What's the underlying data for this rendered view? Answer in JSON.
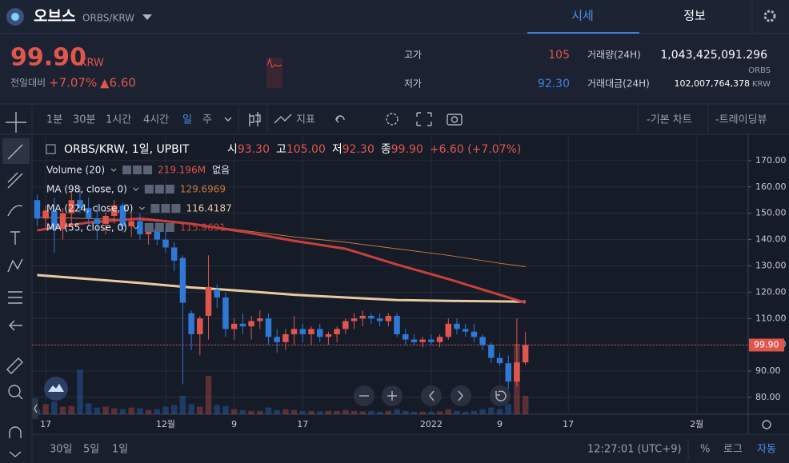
{
  "header": {
    "name": "오브스",
    "pair": "ORBS/KRW",
    "tabs": [
      "시세",
      "정보"
    ]
  },
  "price": {
    "current": "99.90",
    "unit": "KRW",
    "change_label": "전일대비",
    "change_pct": "+7.07%",
    "change_abs": "▲6.60"
  },
  "stats": {
    "high_label": "고가",
    "high": "105",
    "low_label": "저가",
    "low": "92.30",
    "volume_label": "거래량(24H)",
    "volume": "1,043,425,091.296",
    "volume_unit": "ORBS",
    "amount_label": "거래대금(24H)",
    "amount": "102,007,764,378",
    "amount_unit": "KRW"
  },
  "toolbar": {
    "intervals": [
      "1분",
      "30분",
      "1시간",
      "4시간",
      "일",
      "주"
    ],
    "indicator": "지표",
    "basic_chart": "-기본 차트",
    "tradingview": "-트레이딩뷰"
  },
  "legend": {
    "symbol": "ORBS/KRW, 1일, UPBIT",
    "ohlc": [
      {
        "label": "시",
        "value": "93.30"
      },
      {
        "label": "고",
        "value": "105.00"
      },
      {
        "label": "저",
        "value": "92.30"
      },
      {
        "label": "종",
        "value": "99.90"
      }
    ],
    "change": "+6.60 (+7.07%)"
  },
  "chart_data": {
    "type": "candlestick",
    "x": [
      0,
      1,
      2,
      3,
      4,
      5,
      6,
      7,
      8,
      9,
      10,
      11,
      12,
      13,
      14,
      15,
      16,
      17,
      18,
      19,
      20,
      21,
      22,
      23,
      24,
      25,
      26,
      27,
      28,
      29,
      30,
      31,
      32,
      33,
      34,
      35,
      36,
      37,
      38,
      39,
      40,
      41,
      42,
      43,
      44,
      45,
      46,
      47,
      48,
      49,
      50,
      51,
      52,
      53,
      54,
      55,
      56,
      57
    ],
    "open": [
      155,
      148,
      151,
      144,
      150,
      155,
      152,
      148,
      146,
      149,
      153,
      145,
      147,
      142,
      144,
      140,
      137,
      133,
      112,
      104,
      111,
      121,
      118,
      106,
      108,
      107,
      109,
      110,
      103,
      101,
      104,
      106,
      104,
      106,
      103,
      104,
      106,
      109,
      110,
      111,
      110,
      109,
      111,
      104,
      102,
      101,
      102,
      101,
      103,
      108,
      106,
      105,
      103,
      100,
      95,
      93,
      86,
      93.3
    ],
    "high": [
      157,
      153,
      156,
      152,
      158,
      160,
      156,
      153,
      151,
      155,
      154,
      150,
      150,
      146,
      147,
      144,
      139,
      134,
      113,
      111,
      134,
      123,
      120,
      110,
      112,
      111,
      113,
      112,
      106,
      106,
      111,
      108,
      107,
      108,
      105,
      107,
      110,
      112,
      113,
      112,
      112,
      112,
      112,
      106,
      104,
      103,
      104,
      104,
      110,
      110,
      108,
      108,
      104,
      101,
      97,
      96,
      110,
      105
    ],
    "low": [
      145,
      144,
      135,
      140,
      146,
      150,
      145,
      140,
      142,
      146,
      143,
      141,
      140,
      138,
      138,
      135,
      128,
      85,
      98,
      96,
      102,
      114,
      103,
      102,
      104,
      102,
      106,
      100,
      97,
      98,
      100,
      101,
      100,
      101,
      100,
      101,
      104,
      106,
      107,
      108,
      107,
      107,
      103,
      100,
      100,
      99,
      100,
      99,
      102,
      104,
      103,
      101,
      98,
      93,
      92,
      83,
      84,
      92.3
    ],
    "close": [
      148,
      151,
      144,
      150,
      155,
      152,
      148,
      146,
      149,
      153,
      145,
      147,
      142,
      144,
      140,
      137,
      132,
      116,
      104,
      110,
      122,
      118,
      106,
      108,
      107,
      109,
      110,
      103,
      101,
      104,
      106,
      104,
      106,
      103,
      104,
      106,
      109,
      110,
      111,
      110,
      109,
      111,
      104,
      102,
      101,
      102,
      101,
      103,
      108,
      106,
      105,
      103,
      100,
      95,
      93,
      86,
      93.3,
      99.9
    ],
    "volume": {
      "name": "Volume (20)",
      "last_label": "219.196M",
      "extra": "없음",
      "values": [
        60,
        120,
        150,
        90,
        100,
        535,
        130,
        80,
        90,
        70,
        60,
        80,
        70,
        50,
        60,
        90,
        110,
        219,
        120,
        90,
        457,
        110,
        100,
        60,
        50,
        40,
        40,
        80,
        50,
        60,
        50,
        40,
        40,
        35,
        40,
        40,
        50,
        40,
        35,
        40,
        30,
        40,
        60,
        40,
        30,
        30,
        30,
        35,
        60,
        40,
        30,
        40,
        60,
        80,
        60,
        120,
        840,
        219
      ]
    },
    "series": [
      {
        "name": "MA (98, close, 0)",
        "last_label": "129.6969",
        "color": "#c9783a",
        "width": 1,
        "x": [
          0,
          6,
          12,
          18,
          24,
          30,
          36,
          42,
          48,
          54,
          57
        ],
        "values": [
          148.5,
          148,
          147.5,
          146,
          143.5,
          141,
          139,
          136.5,
          134,
          131,
          129.7
        ]
      },
      {
        "name": "MA (224, close, 0)",
        "last_label": "116.4187",
        "color": "#e8c9a0",
        "width": 3,
        "x": [
          0,
          6,
          12,
          18,
          24,
          30,
          36,
          42,
          48,
          54,
          57
        ],
        "values": [
          126.5,
          125,
          123.5,
          121.8,
          120.5,
          119,
          118,
          117,
          116.7,
          116.5,
          116.4
        ]
      },
      {
        "name": "MA (55, close, 0)",
        "last_label": "115.9691",
        "color": "#c8403b",
        "width": 3,
        "x": [
          0,
          6,
          12,
          18,
          24,
          30,
          36,
          42,
          48,
          54,
          57
        ],
        "values": [
          143.5,
          146.5,
          148,
          146,
          143,
          139.5,
          136.5,
          130.5,
          125,
          119,
          116
        ]
      }
    ],
    "up_color": "#e0564d",
    "down_color": "#2f78d6",
    "xlim": [
      -0.6,
      83
    ],
    "ylim": [
      73.6,
      180
    ],
    "xticks": [
      {
        "value": 1,
        "label": "17"
      },
      {
        "value": 15,
        "label": "12월"
      },
      {
        "value": 23,
        "label": "9"
      },
      {
        "value": 31,
        "label": "17"
      },
      {
        "value": 46,
        "label": "2022"
      },
      {
        "value": 54,
        "label": "9"
      },
      {
        "value": 62,
        "label": "17"
      },
      {
        "value": 77,
        "label": "2월"
      }
    ],
    "yticks": [
      {
        "value": 80,
        "label": "80.00"
      },
      {
        "value": 90,
        "label": "90.00"
      },
      {
        "value": 100,
        "label": "100.00"
      },
      {
        "value": 110,
        "label": "110.00"
      },
      {
        "value": 120,
        "label": "120.00"
      },
      {
        "value": 130,
        "label": "130.00"
      },
      {
        "value": 140,
        "label": "140.00"
      },
      {
        "value": 150,
        "label": "150.00"
      },
      {
        "value": 160,
        "label": "160.00"
      },
      {
        "value": 170,
        "label": "170.00"
      }
    ],
    "last_price": {
      "value": 99.9,
      "label": "99.90"
    },
    "grid": true
  },
  "bottom": {
    "ranges": [
      "30일",
      "5일",
      "1일"
    ],
    "time": "12:27:01 (UTC+9)",
    "scale": [
      "%",
      "로그",
      "자동"
    ]
  }
}
